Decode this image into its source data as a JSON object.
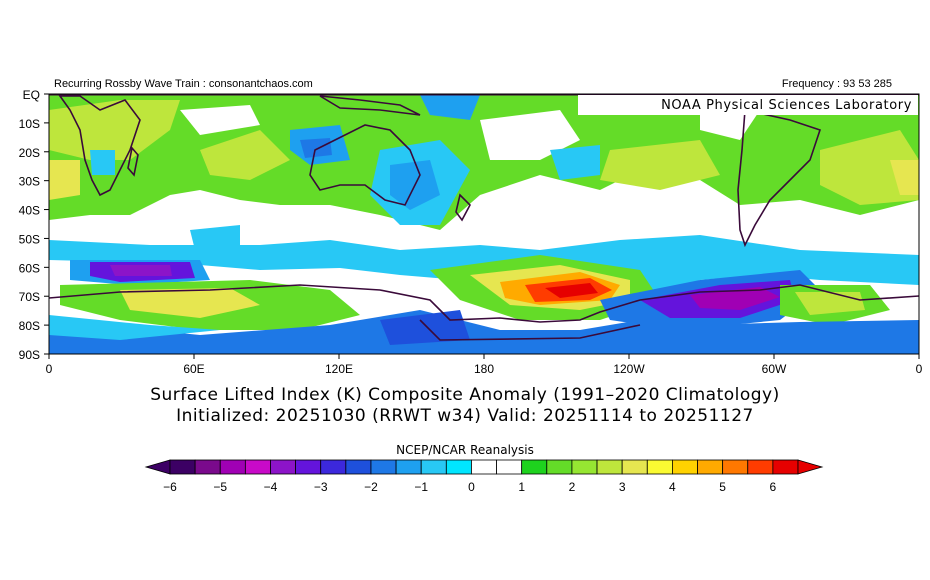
{
  "header": {
    "left_text": "Recurring Rossby Wave Train : consonantchaos.com",
    "right_text": "Frequency : 93 53 285",
    "lab_text": "NOAA Physical Sciences Laboratory"
  },
  "axes": {
    "lat_labels": [
      "EQ",
      "10S",
      "20S",
      "30S",
      "40S",
      "50S",
      "60S",
      "70S",
      "80S",
      "90S"
    ],
    "lon_labels": [
      "0",
      "60E",
      "120E",
      "180",
      "120W",
      "60W",
      "0"
    ]
  },
  "titles": {
    "line1": "Surface Lifted Index (K) Composite Anomaly (1991–2020 Climatology)",
    "line2": "Initialized: 20251030 (RRWT w34) Valid: 20251114 to 20251127",
    "dataset": "NCEP/NCAR Reanalysis"
  },
  "colorbar": {
    "colors": [
      "#3c0064",
      "#7a0a8c",
      "#a000b4",
      "#c80ac8",
      "#8c14c8",
      "#6414dc",
      "#3c28dc",
      "#1e50dc",
      "#1e78e6",
      "#1ea0f0",
      "#28c8f5",
      "#00e6ff",
      "#ffffff",
      "#ffffff",
      "#1ed21e",
      "#64dc28",
      "#96e632",
      "#bee63c",
      "#e6e650",
      "#fafa32",
      "#ffd200",
      "#ffaa00",
      "#ff7800",
      "#ff3c00",
      "#e60000"
    ],
    "labels": [
      "−6",
      "−5",
      "−4",
      "−3",
      "−2",
      "−1",
      "0",
      "1",
      "2",
      "3",
      "4",
      "5",
      "6"
    ]
  }
}
